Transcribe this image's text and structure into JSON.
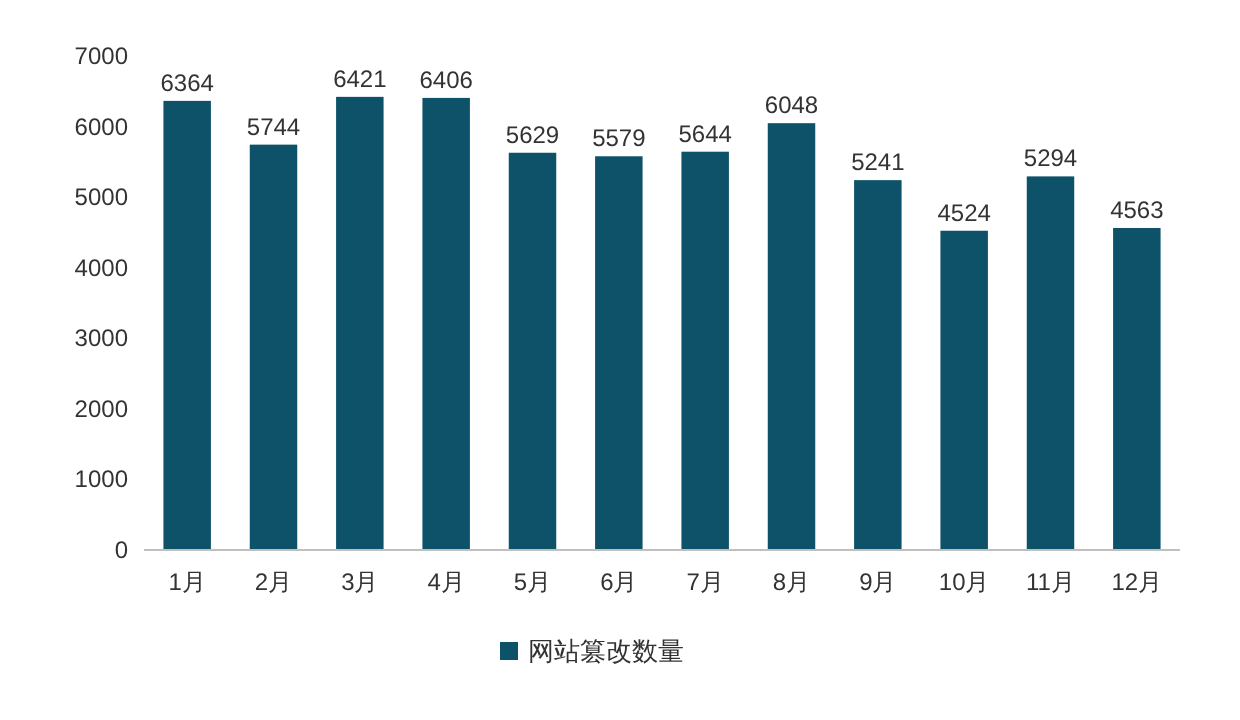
{
  "chart_data": {
    "type": "bar",
    "categories": [
      "1月",
      "2月",
      "3月",
      "4月",
      "5月",
      "6月",
      "7月",
      "8月",
      "9月",
      "10月",
      "11月",
      "12月"
    ],
    "series": [
      {
        "name": "网站篡改数量",
        "color": "#0d5268",
        "values": [
          6364,
          5744,
          6421,
          6406,
          5629,
          5579,
          5644,
          6048,
          5241,
          4524,
          5294,
          4563
        ]
      }
    ],
    "ylim": [
      0,
      7000
    ],
    "yticks": [
      0,
      1000,
      2000,
      3000,
      4000,
      5000,
      6000,
      7000
    ],
    "data_labels": true,
    "legend": "bottom"
  }
}
